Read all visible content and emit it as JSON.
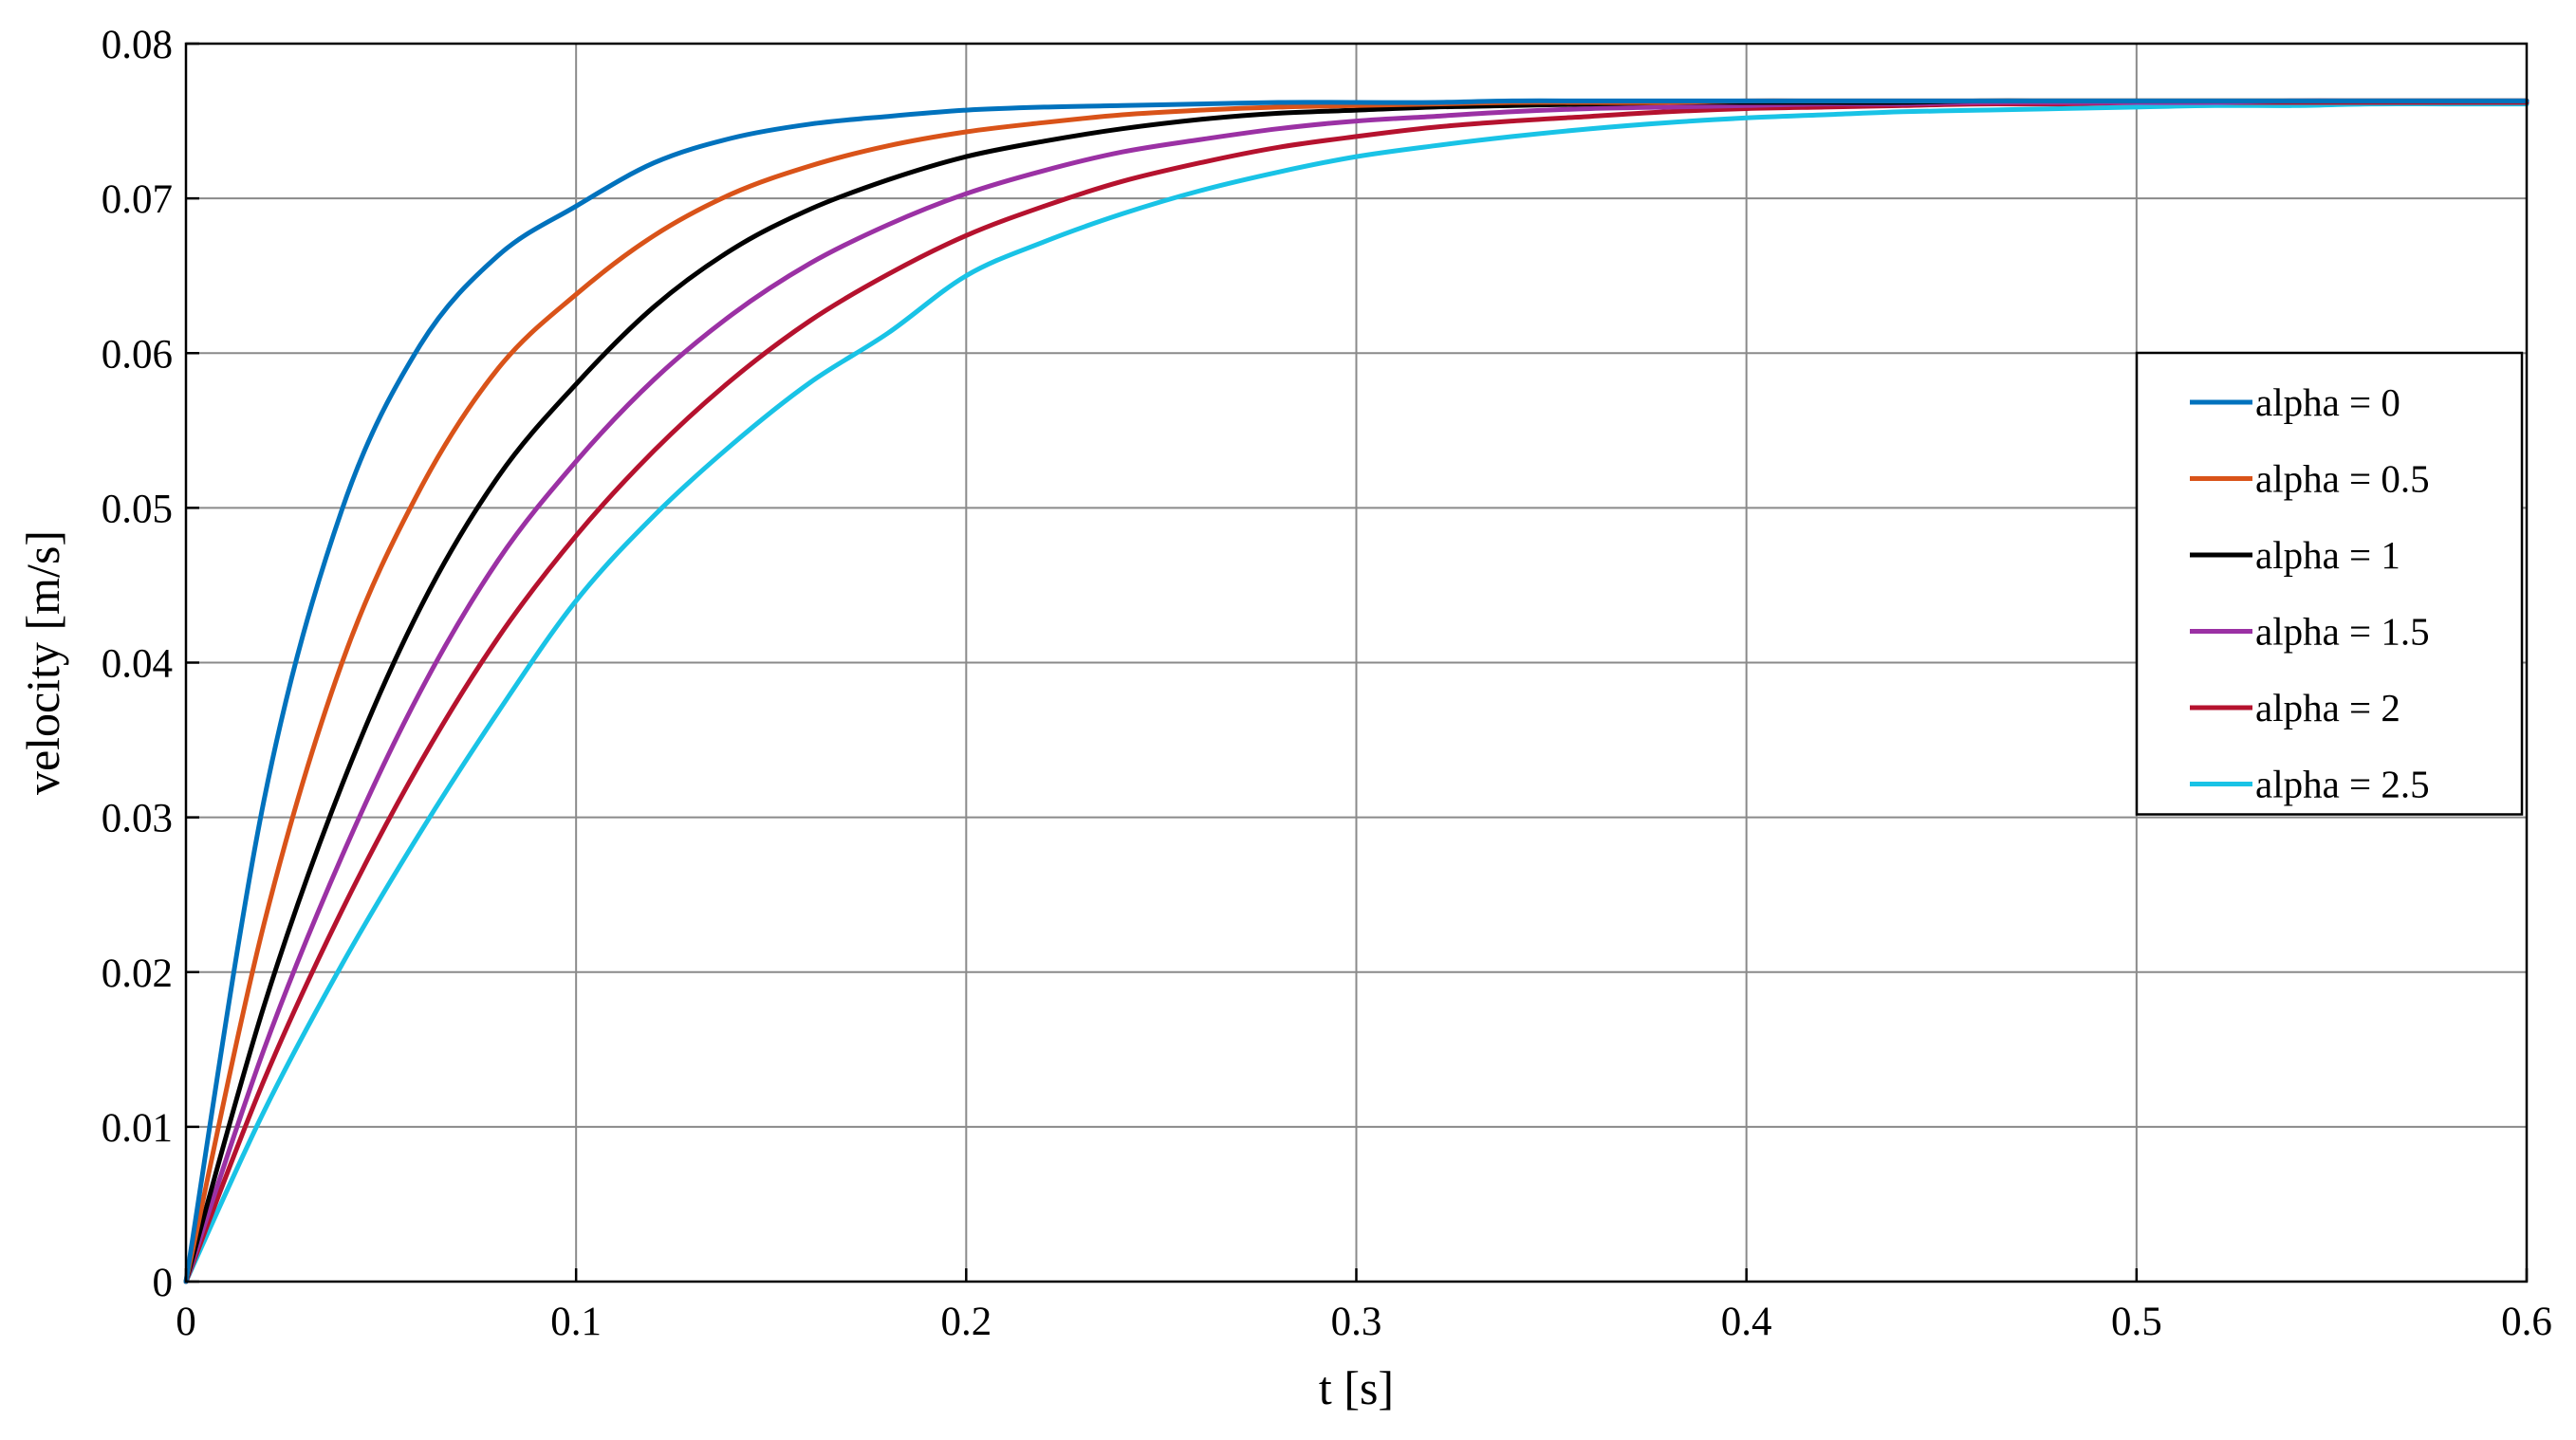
{
  "chart_data": {
    "type": "line",
    "xlabel": "t [s]",
    "ylabel": "velocity [m/s]",
    "xlim": [
      0,
      0.6
    ],
    "ylim": [
      0,
      0.08
    ],
    "x_ticks": [
      "0",
      "0.1",
      "0.2",
      "0.3",
      "0.4",
      "0.5",
      "0.6"
    ],
    "y_ticks": [
      "0",
      "0.01",
      "0.02",
      "0.03",
      "0.04",
      "0.05",
      "0.06",
      "0.07",
      "0.08"
    ],
    "grid": true,
    "legend_position": "right",
    "x": [
      0,
      0.02,
      0.04,
      0.06,
      0.08,
      0.1,
      0.12,
      0.14,
      0.16,
      0.18,
      0.2,
      0.22,
      0.24,
      0.26,
      0.28,
      0.3,
      0.32,
      0.34,
      0.36,
      0.38,
      0.4,
      0.42,
      0.44,
      0.46,
      0.48,
      0.5,
      0.52,
      0.54,
      0.56,
      0.58,
      0.6
    ],
    "series": [
      {
        "name": "alpha = 0",
        "color": "#0072BD",
        "values": [
          0,
          0.0311,
          0.0499,
          0.0605,
          0.0663,
          0.0695,
          0.0723,
          0.0739,
          0.0748,
          0.0753,
          0.0757,
          0.0759,
          0.076,
          0.0761,
          0.0762,
          0.0762,
          0.0762,
          0.0763,
          0.0763,
          0.0763,
          0.0763,
          0.0763,
          0.0763,
          0.0763,
          0.0763,
          0.0763,
          0.0763,
          0.0763,
          0.0763,
          0.0763,
          0.0763
        ]
      },
      {
        "name": "alpha = 0.5",
        "color": "#D95319",
        "values": [
          0,
          0.0231,
          0.04,
          0.0512,
          0.059,
          0.0638,
          0.0676,
          0.0703,
          0.0721,
          0.0734,
          0.0743,
          0.0749,
          0.0754,
          0.0757,
          0.0759,
          0.076,
          0.0761,
          0.0762,
          0.0762,
          0.0762,
          0.0763,
          0.0763,
          0.0763,
          0.0763,
          0.0763,
          0.0763,
          0.0763,
          0.0763,
          0.0763,
          0.0763,
          0.0763
        ]
      },
      {
        "name": "alpha = 1",
        "color": "#000000",
        "values": [
          0,
          0.0178,
          0.0321,
          0.0435,
          0.052,
          0.058,
          0.063,
          0.0667,
          0.0693,
          0.0712,
          0.0727,
          0.0737,
          0.0745,
          0.0751,
          0.0755,
          0.0757,
          0.0759,
          0.076,
          0.0761,
          0.0762,
          0.0762,
          0.0762,
          0.0762,
          0.0763,
          0.0763,
          0.0763,
          0.0763,
          0.0763,
          0.0763,
          0.0763,
          0.0763
        ]
      },
      {
        "name": "alpha = 1.5",
        "color": "#9B31A4",
        "values": [
          0,
          0.015,
          0.0275,
          0.0381,
          0.0466,
          0.053,
          0.0583,
          0.0625,
          0.0658,
          0.0683,
          0.0703,
          0.0718,
          0.073,
          0.0738,
          0.0745,
          0.075,
          0.0753,
          0.0756,
          0.0758,
          0.0759,
          0.076,
          0.0761,
          0.0761,
          0.0762,
          0.0762,
          0.0762,
          0.0762,
          0.0763,
          0.0763,
          0.0763,
          0.0763
        ]
      },
      {
        "name": "alpha = 2",
        "color": "#B5122E",
        "values": [
          0,
          0.013,
          0.024,
          0.0335,
          0.0416,
          0.0482,
          0.0537,
          0.0583,
          0.0621,
          0.0651,
          0.0676,
          0.0695,
          0.0711,
          0.0723,
          0.0733,
          0.074,
          0.0746,
          0.075,
          0.0753,
          0.0756,
          0.0758,
          0.0759,
          0.076,
          0.0761,
          0.0761,
          0.0762,
          0.0762,
          0.0762,
          0.0762,
          0.0762,
          0.0762
        ]
      },
      {
        "name": "alpha = 2.5",
        "color": "#19C3E6",
        "values": [
          0,
          0.011,
          0.0205,
          0.029,
          0.0368,
          0.044,
          0.0495,
          0.0541,
          0.0581,
          0.0613,
          0.065,
          0.0672,
          0.069,
          0.0705,
          0.0717,
          0.0727,
          0.0734,
          0.074,
          0.0745,
          0.0749,
          0.0752,
          0.0754,
          0.0756,
          0.0757,
          0.0758,
          0.0759,
          0.076,
          0.076,
          0.0761,
          0.0761,
          0.0761
        ]
      }
    ]
  }
}
